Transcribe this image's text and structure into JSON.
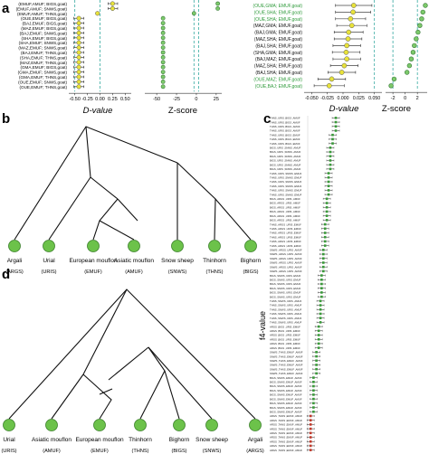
{
  "panels": {
    "a": "a",
    "b": "b",
    "c": "c",
    "d": "d"
  },
  "panel_a": {
    "left_rows": [
      "(EMUF,AMUF; BIGS,goat)",
      "(EMUF,AMUF; SNWS,goat)",
      "(EMUF,AMUF; THNS,goat)",
      "(OUE,EMUF; BIGS,goat)",
      "(BAJ,EMUF; BIGS,goat)",
      "(MAZ,EMUF; BIGS,goat)",
      "(BAJ,EMUF; SNWS,goat)",
      "(SHA,EMUF; BIGS,goat)",
      "(SHA,EMUF; SNWS,goat)",
      "(MAZ,EMUF; SNWS,goat)",
      "(BAJ,EMUF; THNS,goat)",
      "(SHA,EMUF; THNS,goat)",
      "(MAZ,EMUF; THNS,goat)",
      "(GMA,EMUF; BIGS,goat)",
      "(GMA,EMUF; SNWS,goat)",
      "(GMA,EMUF; THNS,goat)",
      "(OUE,EMUF; SNWS,goat)",
      "(OUE,EMUF; THNS,goat)"
    ],
    "right_rows": [
      "(OUE,GMA; EMUF,goat)",
      "(OUE,SHA; EMUF,goat)",
      "(OUE,SHA; EMUF,goat)",
      "(MAZ,GMA; EMUF,goat)",
      "(BAJ,GMA; EMUF,goat)",
      "(MAZ,SHA; EMUF,goat)",
      "(BAJ,SHA; EMUF,goat)",
      "(SHA,GMA; EMUF,goat)",
      "(BAJ,MAZ; EMUF,goat)",
      "(MAZ,SHA; EMUF,goat)",
      "(BAJ,SHA; EMUF,goat)",
      "(OUE,MAZ; EMUF,goat)",
      "(OUE,BAJ; EMUF,goat)"
    ],
    "right_rows_green_indices": [
      0,
      1,
      2,
      11,
      12
    ],
    "left_dvalue": {
      "axis_title": "D-value",
      "ticks": [
        "-0.50",
        "-0.25",
        "0.00",
        "0.25",
        "0.50"
      ],
      "xlim": [
        -0.62,
        0.62
      ],
      "dashed_at": [
        0.0,
        -0.5
      ],
      "points": [
        {
          "d": 0.25,
          "lo": 0.16,
          "hi": 0.35
        },
        {
          "d": 0.25,
          "lo": 0.16,
          "hi": 0.35
        },
        {
          "d": -0.05,
          "lo": -0.08,
          "hi": -0.02
        },
        {
          "d": -0.42,
          "lo": -0.52,
          "hi": -0.32
        },
        {
          "d": -0.42,
          "lo": -0.52,
          "hi": -0.32
        },
        {
          "d": -0.42,
          "lo": -0.52,
          "hi": -0.32
        },
        {
          "d": -0.42,
          "lo": -0.52,
          "hi": -0.32
        },
        {
          "d": -0.42,
          "lo": -0.52,
          "hi": -0.32
        },
        {
          "d": -0.42,
          "lo": -0.52,
          "hi": -0.32
        },
        {
          "d": -0.42,
          "lo": -0.52,
          "hi": -0.32
        },
        {
          "d": -0.42,
          "lo": -0.52,
          "hi": -0.32
        },
        {
          "d": -0.42,
          "lo": -0.52,
          "hi": -0.32
        },
        {
          "d": -0.42,
          "lo": -0.52,
          "hi": -0.32
        },
        {
          "d": -0.42,
          "lo": -0.52,
          "hi": -0.32
        },
        {
          "d": -0.42,
          "lo": -0.52,
          "hi": -0.32
        },
        {
          "d": -0.42,
          "lo": -0.52,
          "hi": -0.32
        },
        {
          "d": -0.42,
          "lo": -0.52,
          "hi": -0.32
        },
        {
          "d": -0.42,
          "lo": -0.52,
          "hi": -0.32
        }
      ]
    },
    "left_zscore": {
      "axis_title": "Z-score",
      "ticks": [
        "-50",
        "-25",
        "0",
        "25"
      ],
      "xlim": [
        -65,
        32
      ],
      "dashed_at": [
        -3,
        3
      ],
      "values": [
        27,
        27,
        -3,
        -42,
        -42,
        -42,
        -42,
        -42,
        -42,
        -42,
        -42,
        -42,
        -42,
        -42,
        -42,
        -42,
        -42,
        -42
      ]
    },
    "right_dvalue": {
      "axis_title": "D-value",
      "ticks": [
        "-0.050",
        "-0.025",
        "0.000",
        "0.025",
        "0.050"
      ],
      "xlim": [
        -0.062,
        0.062
      ],
      "dashed_at": [
        0.05
      ],
      "points": [
        {
          "d": 0.017,
          "lo": -0.012,
          "hi": 0.046
        },
        {
          "d": 0.016,
          "lo": -0.012,
          "hi": 0.044
        },
        {
          "d": 0.012,
          "lo": -0.012,
          "hi": 0.036
        },
        {
          "d": 0.014,
          "lo": -0.01,
          "hi": 0.038
        },
        {
          "d": 0.009,
          "lo": -0.014,
          "hi": 0.032
        },
        {
          "d": 0.008,
          "lo": -0.014,
          "hi": 0.03
        },
        {
          "d": 0.006,
          "lo": -0.016,
          "hi": 0.028
        },
        {
          "d": 0.005,
          "lo": -0.017,
          "hi": 0.027
        },
        {
          "d": 0.006,
          "lo": -0.016,
          "hi": 0.028
        },
        {
          "d": 0.002,
          "lo": -0.02,
          "hi": 0.024
        },
        {
          "d": -0.002,
          "lo": -0.024,
          "hi": 0.02
        },
        {
          "d": -0.018,
          "lo": -0.04,
          "hi": 0.004
        },
        {
          "d": -0.022,
          "lo": -0.046,
          "hi": 0.002
        }
      ]
    },
    "right_zscore": {
      "axis_title": "Z-score",
      "ticks": [
        "-2",
        "0",
        "2"
      ],
      "xlim": [
        -3.2,
        3.6
      ],
      "dashed_at": [
        -2,
        2
      ],
      "values": [
        3.3,
        2.9,
        2.7,
        2.4,
        2.1,
        1.8,
        1.5,
        1.3,
        1.0,
        0.7,
        0.3,
        -1.8,
        -2.3
      ]
    }
  },
  "panel_b": {
    "leaves": [
      {
        "name": "Argali",
        "code": "(ARGS)"
      },
      {
        "name": "Urial",
        "code": "(URIS)"
      },
      {
        "name": "European mouflon",
        "code": "(EMUF)"
      },
      {
        "name": "Asiatic mouflon",
        "code": "(AMUF)"
      },
      {
        "name": "Snow sheep",
        "code": "(SNWS)"
      },
      {
        "name": "Thinhorn",
        "code": "(THNS)"
      },
      {
        "name": "Bighorn",
        "code": "(BIGS)"
      }
    ]
  },
  "panel_d": {
    "leaves": [
      {
        "name": "Urial",
        "code": "(URIS)"
      },
      {
        "name": "Asiatic mouflon",
        "code": "(AMUF)"
      },
      {
        "name": "European mouflon",
        "code": "(EMUF)"
      },
      {
        "name": "Thinhorn",
        "code": "(THNS)"
      },
      {
        "name": "Bighorn",
        "code": "(BIGS)"
      },
      {
        "name": "Snow sheep",
        "code": "(SNWS)"
      },
      {
        "name": "Argali",
        "code": "(ARGS)"
      }
    ]
  },
  "panel_c": {
    "ylabel": "f4-value",
    "row_groups": [
      {
        "label": "THNS  ,URIS  ,BIGS  ,AMUF",
        "count": 4,
        "color": "#3a9a3a",
        "x": 0.97
      },
      {
        "label": "THNS  ,URIS  ,BIGS  ,EMUF",
        "count": 3,
        "color": "#3a9a3a",
        "x": 0.86
      },
      {
        "label": "BIGS  ,URIS  ,SNWS  ,AMUF",
        "count": 6,
        "color": "#3a9a3a",
        "x": 0.78
      },
      {
        "label": "THNS  ,URIS  ,SNWS  ,EMUF",
        "count": 6,
        "color": "#3a9a3a",
        "x": 0.72
      },
      {
        "label": "BIGS  ,ARGS  ,URIS  ,AMUF",
        "count": 6,
        "color": "#3a9a3a",
        "x": 0.66
      },
      {
        "label": "THNS  ,ARGS  ,URIS  ,EMUF",
        "count": 6,
        "color": "#3a9a3a",
        "x": 0.6
      },
      {
        "label": "SNWS  ,ARGS  ,URIS  ,AMUF",
        "count": 6,
        "color": "#3a9a3a",
        "x": 0.54
      },
      {
        "label": "BIGS  ,SNWS  ,URIS  ,EMUF",
        "count": 6,
        "color": "#3a9a3a",
        "x": 0.48
      },
      {
        "label": "THNS  ,SNWS  ,URIS  ,AMUF",
        "count": 6,
        "color": "#3a9a3a",
        "x": 0.44
      },
      {
        "label": "ARGS  ,BIGS  ,URIS  ,EMUF",
        "count": 6,
        "color": "#3a9a3a",
        "x": 0.38
      },
      {
        "label": "SNWS  ,THNS  ,EMUF  ,AMUF",
        "count": 6,
        "color": "#3a9a3a",
        "x": 0.3
      },
      {
        "label": "BIGS  ,SNWS  ,EMUF  ,AMUF",
        "count": 9,
        "color": "#3a9a3a",
        "x": 0.2
      },
      {
        "label": "ARGS  ,THNS  ,EMUF  ,AMUF",
        "count": 9,
        "color": "#c0392b",
        "x": 0.1
      }
    ]
  }
}
